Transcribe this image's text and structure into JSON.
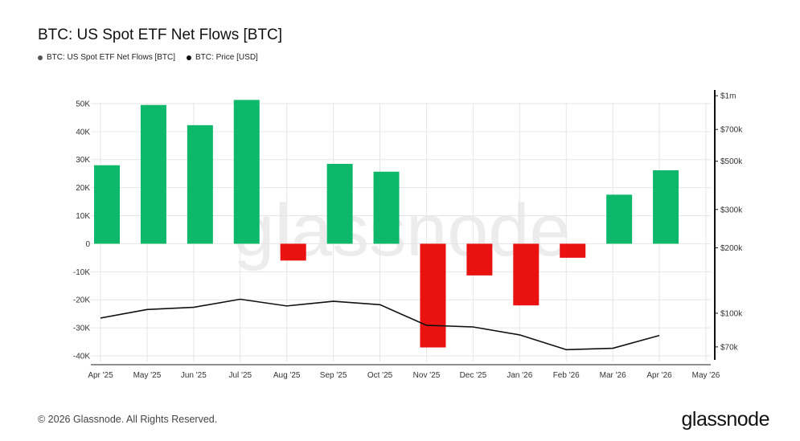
{
  "header": {
    "title": "BTC: US Spot ETF Net Flows [BTC]"
  },
  "legend": [
    {
      "label": "BTC: US Spot ETF Net Flows [BTC]",
      "color": "#555555"
    },
    {
      "label": "BTC: Price [USD]",
      "color": "#111111"
    }
  ],
  "colors": {
    "positive": "#0db86b",
    "negative": "#ea1111",
    "price_line": "#111111",
    "grid": "#e6e6e6",
    "watermark": "#ececec"
  },
  "watermark": "glassnode",
  "footer": {
    "copyright": "© 2026 Glassnode. All Rights Reserved.",
    "brand": "glassnode"
  },
  "chart_data": {
    "type": "bar",
    "x_ticks": [
      "Apr '25",
      "May '25",
      "Jun '25",
      "Jul '25",
      "Aug '25",
      "Sep '25",
      "Oct '25",
      "Nov '25",
      "Dec '25",
      "Jan '26",
      "Feb '26",
      "Mar '26",
      "Apr '26",
      "May '26"
    ],
    "y_ticks": [
      "-40K",
      "-30K",
      "-20K",
      "-10K",
      "0",
      "10K",
      "20K",
      "30K",
      "40K",
      "50K"
    ],
    "y_ticks_values": [
      -40000,
      -30000,
      -20000,
      -10000,
      0,
      10000,
      20000,
      30000,
      40000,
      50000
    ],
    "ylim": [
      -42000,
      56000
    ],
    "y2_ticks": [
      "$70k",
      "$100k",
      "$200k",
      "$300k",
      "$500k",
      "$700k",
      "$1m"
    ],
    "y2_ticks_values": [
      70000,
      100000,
      200000,
      300000,
      500000,
      700000,
      1000000
    ],
    "y2_scale": "log",
    "y2lim": [
      60000,
      1100000
    ],
    "grid": true,
    "legend_position": "top-left",
    "series": [
      {
        "name": "BTC: US Spot ETF Net Flows [BTC]",
        "type": "bar",
        "x": [
          "Apr '25",
          "May '25",
          "Jun '25",
          "Jul '25",
          "Aug '25",
          "Sep '25",
          "Oct '25",
          "Nov '25",
          "Dec '25",
          "Jan '26",
          "Feb '26",
          "Mar '26",
          "Apr '26"
        ],
        "values": [
          28000,
          49500,
          42300,
          51300,
          -6000,
          28500,
          25700,
          -37000,
          -11300,
          -22000,
          -5000,
          17500,
          26200
        ]
      },
      {
        "name": "BTC: Price [USD]",
        "type": "line",
        "axis": "right",
        "x": [
          "Apr '25",
          "May '25",
          "Jun '25",
          "Jul '25",
          "Aug '25",
          "Sep '25",
          "Oct '25",
          "Nov '25",
          "Dec '25",
          "Jan '26",
          "Feb '26",
          "Mar '26",
          "Apr '26"
        ],
        "values": [
          95000,
          104000,
          106500,
          116000,
          108000,
          113500,
          109500,
          88000,
          86500,
          79500,
          68000,
          69000,
          79000
        ]
      }
    ]
  }
}
